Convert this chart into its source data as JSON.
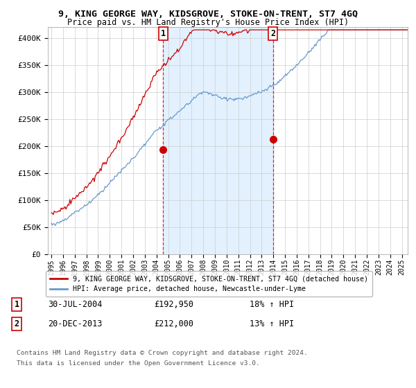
{
  "title": "9, KING GEORGE WAY, KIDSGROVE, STOKE-ON-TRENT, ST7 4GQ",
  "subtitle": "Price paid vs. HM Land Registry's House Price Index (HPI)",
  "ylabel_ticks": [
    "£0",
    "£50K",
    "£100K",
    "£150K",
    "£200K",
    "£250K",
    "£300K",
    "£350K",
    "£400K"
  ],
  "ytick_values": [
    0,
    50000,
    100000,
    150000,
    200000,
    250000,
    300000,
    350000,
    400000
  ],
  "ylim": [
    0,
    420000
  ],
  "xlim_start": 1994.7,
  "xlim_end": 2025.5,
  "sale1_x": 2004.58,
  "sale1_y": 192950,
  "sale1_label": "1",
  "sale2_x": 2013.97,
  "sale2_y": 212000,
  "sale2_label": "2",
  "legend_house_label": "9, KING GEORGE WAY, KIDSGROVE, STOKE-ON-TRENT, ST7 4GQ (detached house)",
  "legend_hpi_label": "HPI: Average price, detached house, Newcastle-under-Lyme",
  "table_row1": [
    "1",
    "30-JUL-2004",
    "£192,950",
    "18% ↑ HPI"
  ],
  "table_row2": [
    "2",
    "20-DEC-2013",
    "£212,000",
    "13% ↑ HPI"
  ],
  "footnote1": "Contains HM Land Registry data © Crown copyright and database right 2024.",
  "footnote2": "This data is licensed under the Open Government Licence v3.0.",
  "house_color": "#cc0000",
  "hpi_color": "#6699cc",
  "shade_color": "#ddeeff",
  "background_color": "#ffffff",
  "grid_color": "#cccccc"
}
